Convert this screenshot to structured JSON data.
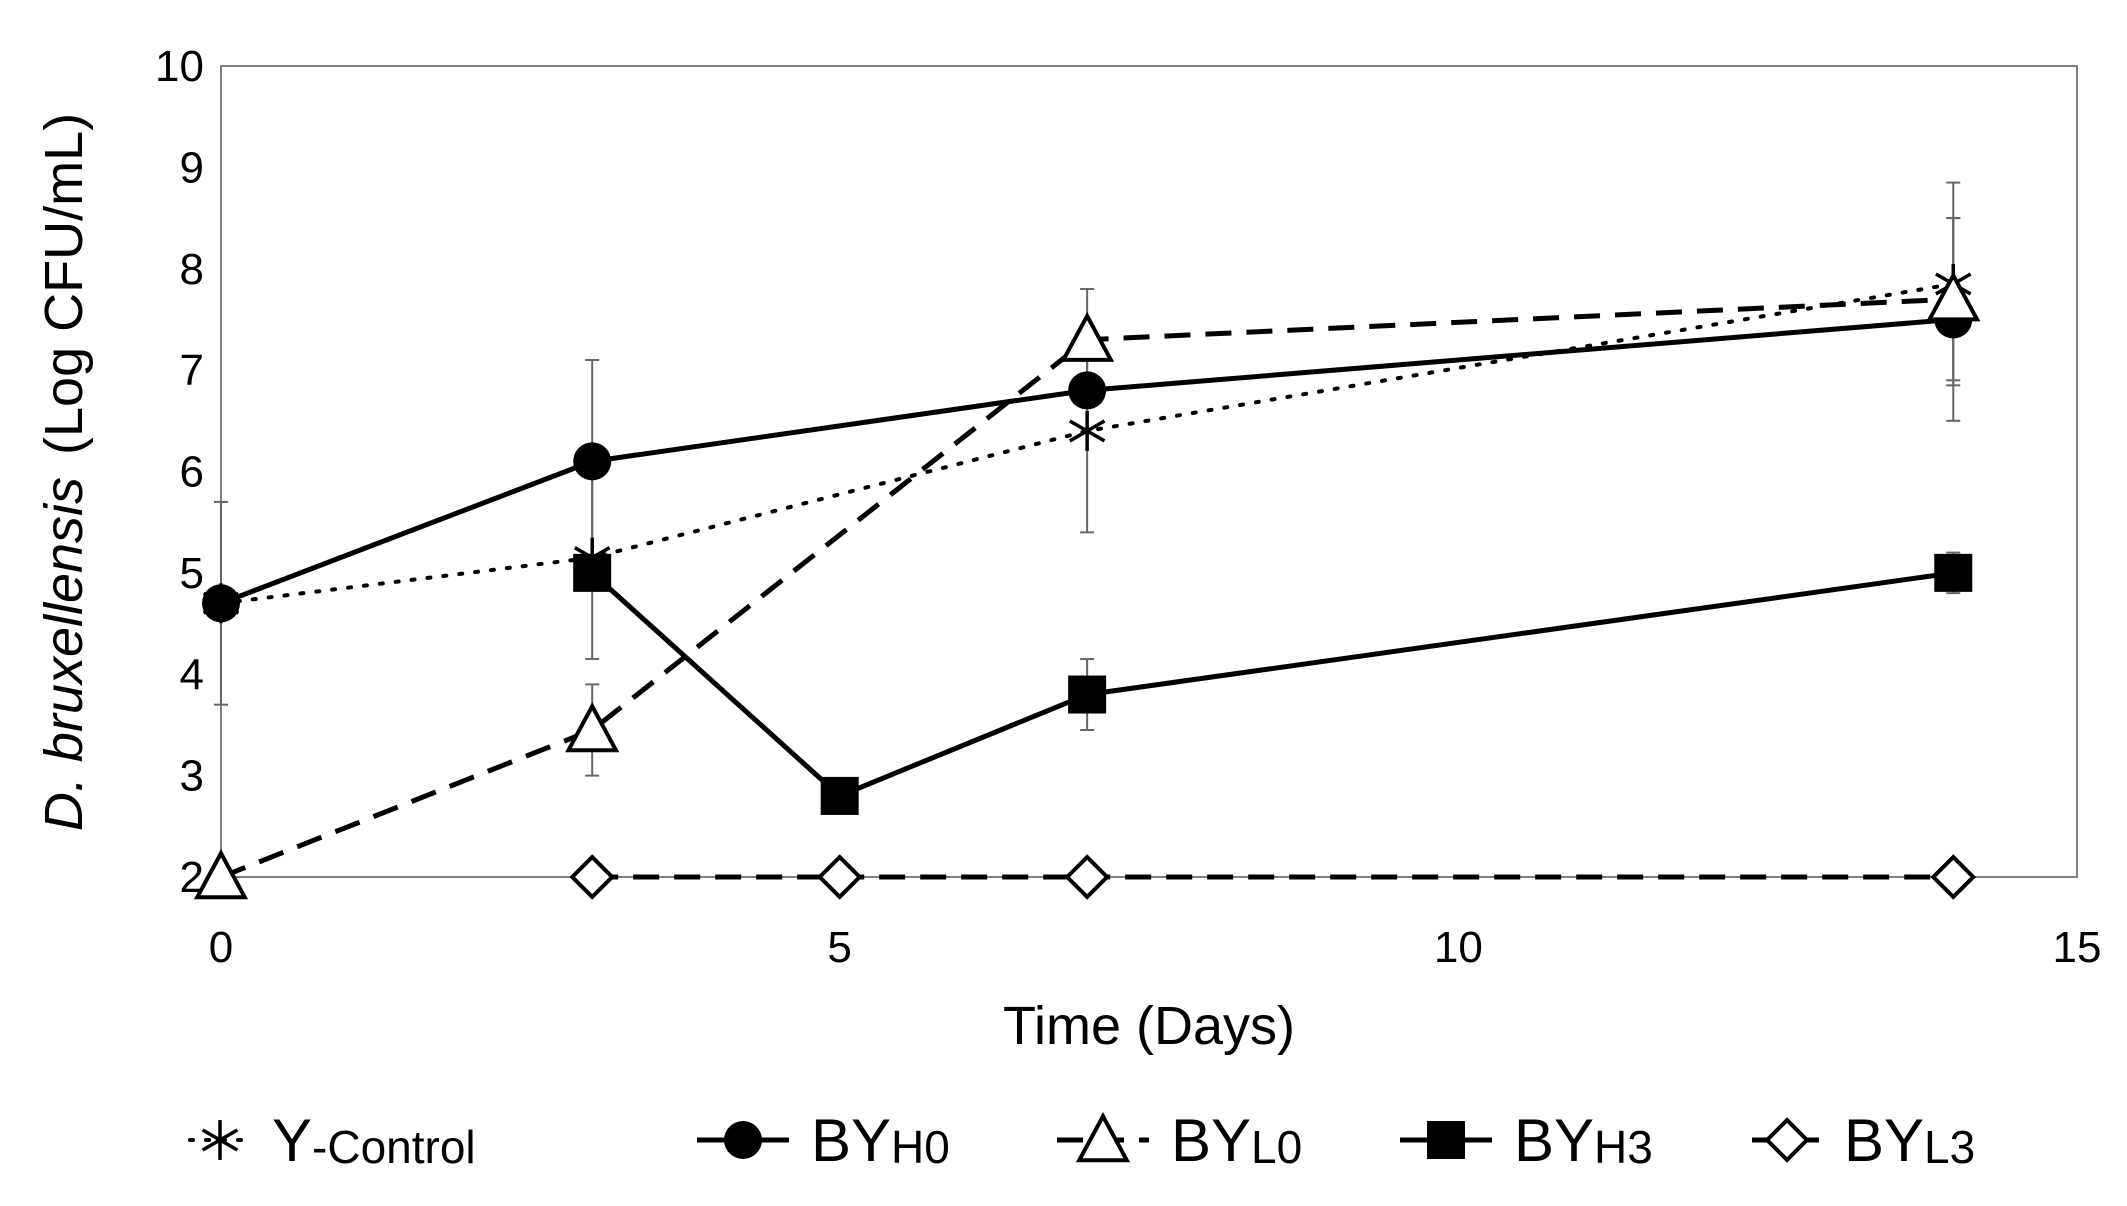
{
  "chart_data": {
    "type": "line",
    "title": "",
    "xlabel": "Time (Days)",
    "ylabel": {
      "italic": "D. bruxellensis",
      "plain": "(Log CFU/mL)"
    },
    "xlim": [
      0,
      15
    ],
    "ylim": [
      2,
      10
    ],
    "x_ticks": [
      "0",
      "5",
      "10",
      "15"
    ],
    "y_ticks": [
      "2",
      "3",
      "4",
      "5",
      "6",
      "7",
      "8",
      "9",
      "10"
    ],
    "grid": false,
    "legend_position": "bottom",
    "series": [
      {
        "key": "y_control",
        "name": "Y",
        "name_sub": "-Control",
        "marker": "asterisk",
        "line": "dotted",
        "x": [
          0,
          3,
          7,
          14
        ],
        "y": [
          4.7,
          5.15,
          6.4,
          7.85
        ],
        "err": [
          1.0,
          1.0,
          1.0,
          1.0
        ]
      },
      {
        "key": "by_h0",
        "name": "BY",
        "name_sub": "H0",
        "marker": "circle-filled",
        "line": "solid",
        "x": [
          0,
          3,
          7,
          14
        ],
        "y": [
          4.7,
          6.1,
          6.8,
          7.5
        ],
        "err": [
          0.0,
          1.0,
          0.0,
          1.0
        ]
      },
      {
        "key": "by_l0",
        "name": "BY",
        "name_sub": "L0",
        "marker": "triangle-open",
        "line": "dashed",
        "x": [
          0,
          3,
          7,
          14
        ],
        "y": [
          2.0,
          3.45,
          7.3,
          7.7
        ],
        "err": [
          0.0,
          0.45,
          0.5,
          0.8
        ]
      },
      {
        "key": "by_h3",
        "name": "BY",
        "name_sub": "H3",
        "marker": "square-filled",
        "line": "solid",
        "x": [
          3,
          5,
          7,
          14
        ],
        "y": [
          5.0,
          2.8,
          3.8,
          5.0
        ],
        "err": [
          0.0,
          0.15,
          0.35,
          0.2
        ]
      },
      {
        "key": "by_l3",
        "name": "BY",
        "name_sub": "L3",
        "marker": "diamond-open",
        "line": "dashed",
        "x": [
          3,
          5,
          7,
          14
        ],
        "y": [
          2.0,
          2.0,
          2.0,
          2.0
        ],
        "err": [
          0.0,
          0.0,
          0.0,
          0.0
        ]
      }
    ]
  }
}
